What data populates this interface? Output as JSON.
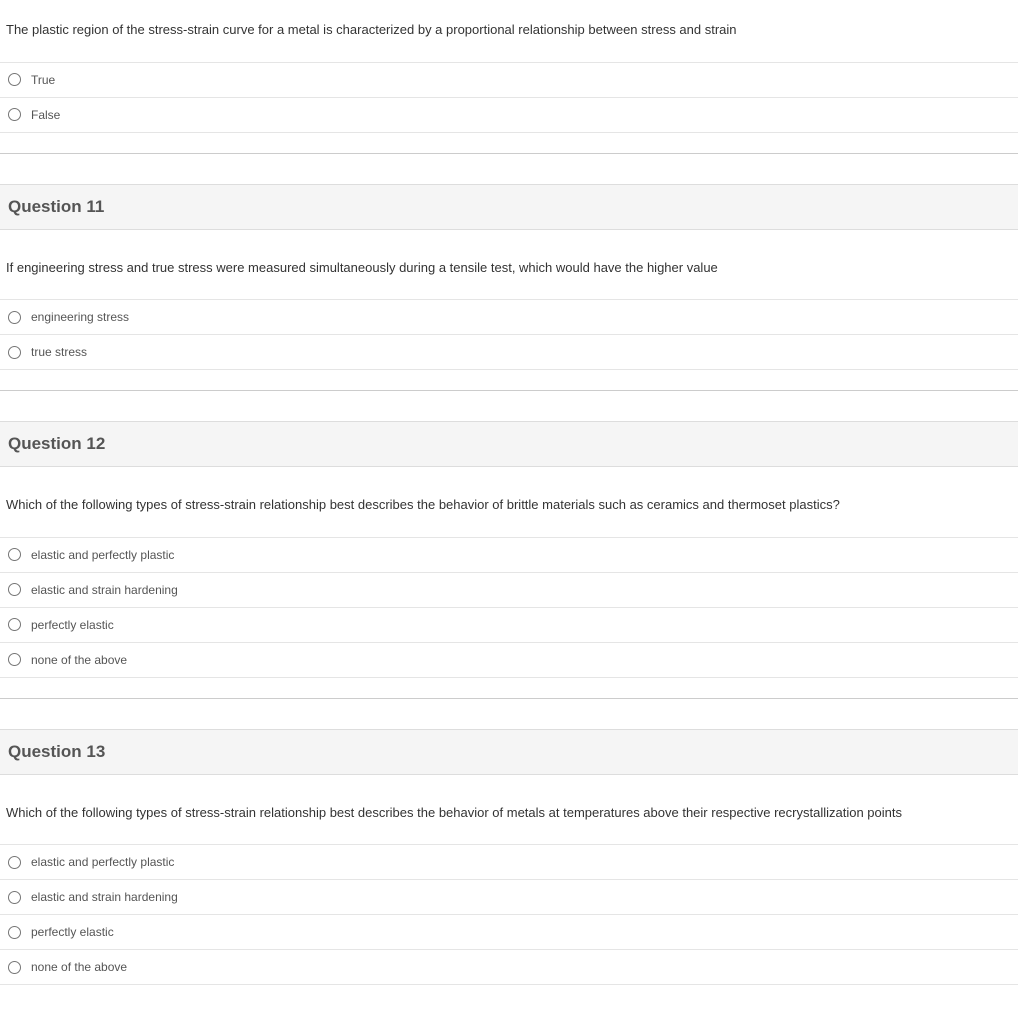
{
  "questions": [
    {
      "header": null,
      "text": "The plastic region of the stress-strain curve for a metal is characterized by a proportional relationship between stress and strain",
      "options": [
        "True",
        "False"
      ]
    },
    {
      "header": "Question 11",
      "text": "If engineering stress and true stress were measured simultaneously during a tensile test, which would have the higher value",
      "options": [
        "engineering stress",
        "true stress"
      ]
    },
    {
      "header": "Question 12",
      "text": "Which of the following types of stress-strain relationship best describes the behavior of brittle materials such as ceramics and thermoset plastics?",
      "options": [
        "elastic and perfectly plastic",
        "elastic and strain hardening",
        "perfectly elastic",
        "none of the above"
      ]
    },
    {
      "header": "Question 13",
      "text": "Which of the following types of stress-strain relationship best describes the behavior of metals at temperatures above their respective recrystallization points",
      "options": [
        "elastic and perfectly plastic",
        "elastic and strain hardening",
        "perfectly elastic",
        "none of the above"
      ]
    }
  ],
  "colors": {
    "header_bg": "#f5f5f5",
    "border": "#e5e5e5",
    "text": "#333333",
    "option_text": "#555555"
  }
}
